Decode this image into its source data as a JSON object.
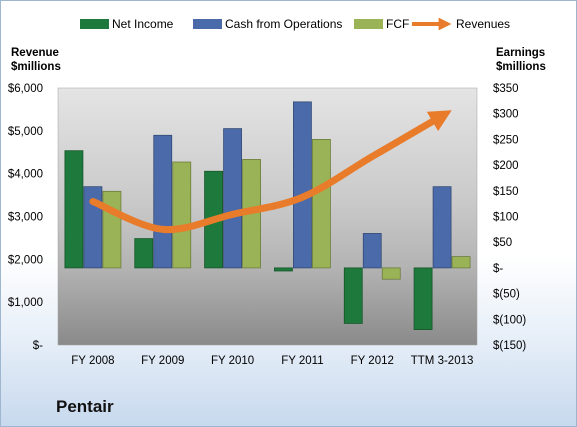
{
  "company": "Pentair",
  "chart_data": {
    "type": "bar",
    "categories": [
      "FY 2008",
      "FY 2009",
      "FY 2010",
      "FY 2011",
      "FY 2012",
      "TTM 3-2013"
    ],
    "series": [
      {
        "name": "Net Income",
        "axis": "right",
        "color": "#1e7a3c",
        "values": [
          228,
          57,
          188,
          -6,
          -108,
          -120
        ]
      },
      {
        "name": "Cash from Operations",
        "axis": "right",
        "color": "#4a6aa9",
        "values": [
          158,
          258,
          271,
          323,
          67,
          158
        ]
      },
      {
        "name": "FCF",
        "axis": "right",
        "color": "#9ab356",
        "values": [
          149,
          206,
          211,
          250,
          -22,
          22
        ]
      },
      {
        "name": "Revenues",
        "axis": "left",
        "type": "line",
        "color": "#e87c2b",
        "values": [
          3350,
          2700,
          3050,
          3450,
          4400,
          5350
        ]
      }
    ],
    "left_axis": {
      "label_line1": "Revenue",
      "label_line2": "$millions",
      "ylim": [
        0,
        6000
      ],
      "ticks": [
        "$6,000",
        "$5,000",
        "$4,000",
        "$3,000",
        "$2,000",
        "$1,000",
        "$-"
      ],
      "tick_values": [
        6000,
        5000,
        4000,
        3000,
        2000,
        1000,
        0
      ]
    },
    "right_axis": {
      "label_line1": "Earnings",
      "label_line2": "$millions",
      "ylim": [
        -150,
        350
      ],
      "ticks": [
        "$350",
        "$300",
        "$250",
        "$200",
        "$150",
        "$100",
        "$50",
        "$-",
        "$(50)",
        "$(100)",
        "$(150)"
      ],
      "tick_values": [
        350,
        300,
        250,
        200,
        150,
        100,
        50,
        0,
        -50,
        -100,
        -150
      ]
    },
    "legend_position": "top",
    "grid": false
  }
}
